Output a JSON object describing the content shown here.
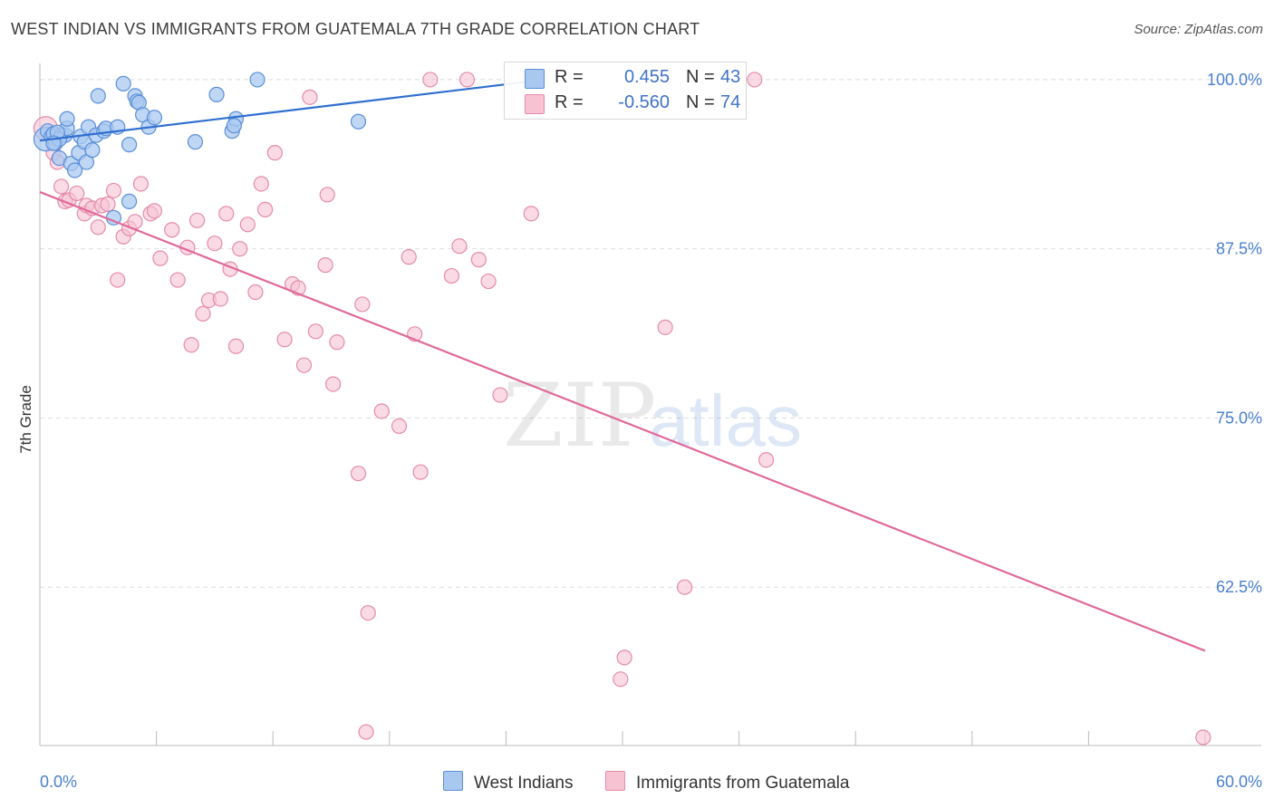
{
  "title": "WEST INDIAN VS IMMIGRANTS FROM GUATEMALA 7TH GRADE CORRELATION CHART",
  "source": "Source: ZipAtlas.com",
  "watermark": {
    "part1": "ZIP",
    "part2": "atlas"
  },
  "colors": {
    "blue_fill": "#a9c8f0",
    "blue_stroke": "#5b8fd8",
    "blue_line": "#2f6fcf",
    "pink_fill": "#f7c3d3",
    "pink_stroke": "#e58aa9",
    "pink_line": "#e0699a",
    "tick_label": "#4a7fd0",
    "grid": "#dddddd"
  },
  "legend": {
    "rows": [
      {
        "r_label": "R =",
        "r_value": " 0.455",
        "n_label": "N =",
        "n_value": "43"
      },
      {
        "r_label": "R =",
        "r_value": "-0.560",
        "n_label": "N =",
        "n_value": "74"
      }
    ]
  },
  "bottom_legend": {
    "series1": "West Indians",
    "series2": "Immigrants from Guatemala"
  },
  "chart_data": {
    "type": "scatter",
    "title": "WEST INDIAN VS IMMIGRANTS FROM GUATEMALA 7TH GRADE CORRELATION CHART",
    "xlabel": "",
    "ylabel": "7th Grade",
    "xlim": [
      0,
      60
    ],
    "ylim": [
      50.8,
      101.2
    ],
    "x_tick_labels": [
      {
        "value": 0,
        "label": "0.0%"
      },
      {
        "value": 60,
        "label": "60.0%"
      }
    ],
    "y_tick_labels": [
      {
        "value": 100,
        "label": "100.0%"
      },
      {
        "value": 87.5,
        "label": "87.5%"
      },
      {
        "value": 75,
        "label": "75.0%"
      },
      {
        "value": 62.5,
        "label": "62.5%"
      }
    ],
    "x_minor_ticks": [
      0,
      6,
      12,
      18,
      24,
      30,
      36,
      42,
      48,
      54,
      60
    ],
    "series": [
      {
        "name": "West Indians",
        "r": 0.455,
        "n": 43,
        "trend": {
          "x": [
            0,
            26
          ],
          "y": [
            95.5,
            100.0
          ]
        },
        "points": [
          [
            0.3,
            95.6
          ],
          [
            0.4,
            96.2
          ],
          [
            0.6,
            95.8
          ],
          [
            0.7,
            96.0
          ],
          [
            0.8,
            95.3
          ],
          [
            1.0,
            94.2
          ],
          [
            1.1,
            95.9
          ],
          [
            1.3,
            95.9
          ],
          [
            1.4,
            96.4
          ],
          [
            1.4,
            97.1
          ],
          [
            1.6,
            93.8
          ],
          [
            1.8,
            93.3
          ],
          [
            2.0,
            94.6
          ],
          [
            2.1,
            95.8
          ],
          [
            2.3,
            95.4
          ],
          [
            2.4,
            93.9
          ],
          [
            2.7,
            94.8
          ],
          [
            2.5,
            96.5
          ],
          [
            2.9,
            95.9
          ],
          [
            3.0,
            98.8
          ],
          [
            3.3,
            96.2
          ],
          [
            3.4,
            96.4
          ],
          [
            3.8,
            89.8
          ],
          [
            4.0,
            96.5
          ],
          [
            4.3,
            99.7
          ],
          [
            4.6,
            91.0
          ],
          [
            4.6,
            95.2
          ],
          [
            4.9,
            98.8
          ],
          [
            5.0,
            98.4
          ],
          [
            5.1,
            98.3
          ],
          [
            5.3,
            97.4
          ],
          [
            5.6,
            96.5
          ],
          [
            5.9,
            97.2
          ],
          [
            8.0,
            95.4
          ],
          [
            9.1,
            98.9
          ],
          [
            9.9,
            96.2
          ],
          [
            10.1,
            97.1
          ],
          [
            10.0,
            96.6
          ],
          [
            11.2,
            100.0
          ],
          [
            16.4,
            96.9
          ],
          [
            1.0,
            95.6
          ],
          [
            0.9,
            96.1
          ],
          [
            0.7,
            95.3
          ]
        ]
      },
      {
        "name": "Immigrants from Guatemala",
        "r": -0.56,
        "n": 74,
        "trend": {
          "x": [
            0,
            60
          ],
          "y": [
            91.7,
            57.8
          ]
        },
        "points": [
          [
            0.3,
            96.4
          ],
          [
            0.7,
            94.6
          ],
          [
            0.9,
            93.9
          ],
          [
            1.1,
            92.1
          ],
          [
            1.3,
            91.0
          ],
          [
            1.5,
            91.1
          ],
          [
            1.9,
            91.6
          ],
          [
            2.3,
            90.1
          ],
          [
            2.4,
            90.7
          ],
          [
            2.7,
            90.5
          ],
          [
            3.0,
            89.1
          ],
          [
            3.2,
            90.7
          ],
          [
            3.5,
            90.8
          ],
          [
            3.8,
            91.8
          ],
          [
            4.0,
            85.2
          ],
          [
            4.3,
            88.4
          ],
          [
            4.6,
            89.0
          ],
          [
            4.9,
            89.5
          ],
          [
            5.2,
            92.3
          ],
          [
            5.7,
            90.1
          ],
          [
            5.9,
            90.3
          ],
          [
            6.2,
            86.8
          ],
          [
            6.8,
            88.9
          ],
          [
            7.1,
            85.2
          ],
          [
            7.6,
            87.6
          ],
          [
            7.8,
            80.4
          ],
          [
            8.1,
            89.6
          ],
          [
            8.4,
            82.7
          ],
          [
            8.7,
            83.7
          ],
          [
            9.0,
            87.9
          ],
          [
            9.3,
            83.8
          ],
          [
            9.6,
            90.1
          ],
          [
            9.8,
            86.0
          ],
          [
            10.1,
            80.3
          ],
          [
            10.3,
            87.5
          ],
          [
            10.7,
            89.3
          ],
          [
            11.1,
            84.3
          ],
          [
            11.4,
            92.3
          ],
          [
            11.6,
            90.4
          ],
          [
            12.1,
            94.6
          ],
          [
            12.6,
            80.8
          ],
          [
            13.0,
            84.9
          ],
          [
            13.3,
            84.6
          ],
          [
            13.6,
            78.9
          ],
          [
            13.9,
            98.7
          ],
          [
            14.2,
            81.4
          ],
          [
            14.7,
            86.3
          ],
          [
            14.8,
            91.5
          ],
          [
            15.1,
            77.5
          ],
          [
            15.3,
            80.6
          ],
          [
            16.4,
            70.9
          ],
          [
            16.6,
            83.4
          ],
          [
            16.8,
            51.8
          ],
          [
            16.9,
            60.6
          ],
          [
            17.6,
            75.5
          ],
          [
            18.5,
            74.4
          ],
          [
            19.0,
            86.9
          ],
          [
            19.3,
            81.2
          ],
          [
            19.6,
            71.0
          ],
          [
            20.1,
            100.0
          ],
          [
            21.2,
            85.5
          ],
          [
            21.6,
            87.7
          ],
          [
            22.0,
            100.0
          ],
          [
            22.6,
            86.7
          ],
          [
            23.1,
            85.1
          ],
          [
            23.7,
            76.7
          ],
          [
            25.3,
            90.1
          ],
          [
            29.9,
            55.7
          ],
          [
            30.1,
            57.3
          ],
          [
            32.2,
            81.7
          ],
          [
            33.2,
            62.5
          ],
          [
            36.8,
            100.0
          ],
          [
            37.4,
            71.9
          ],
          [
            59.9,
            51.4
          ]
        ]
      }
    ]
  }
}
